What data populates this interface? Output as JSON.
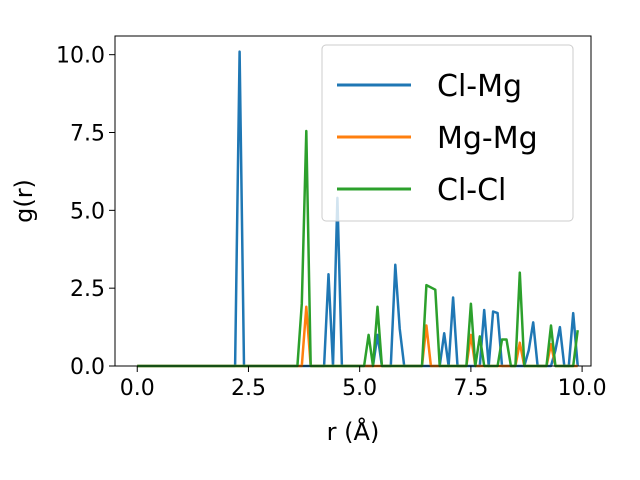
{
  "chart_data": {
    "type": "line",
    "xlabel": "r (Å)",
    "ylabel": "g(r)",
    "xlim": [
      -0.5,
      10.2
    ],
    "ylim": [
      0,
      10.6
    ],
    "xticks": [
      {
        "value": 0.0,
        "label": "0.0"
      },
      {
        "value": 2.5,
        "label": "2.5"
      },
      {
        "value": 5.0,
        "label": "5.0"
      },
      {
        "value": 7.5,
        "label": "7.5"
      },
      {
        "value": 10.0,
        "label": "10.0"
      }
    ],
    "yticks": [
      {
        "value": 0.0,
        "label": "0.0"
      },
      {
        "value": 2.5,
        "label": "2.5"
      },
      {
        "value": 5.0,
        "label": "5.0"
      },
      {
        "value": 7.5,
        "label": "7.5"
      },
      {
        "value": 10.0,
        "label": "10.0"
      }
    ],
    "grid": false,
    "legend_position": "top-right",
    "series": [
      {
        "name": "Cl-Mg",
        "color": "#1f77b4",
        "points": [
          [
            0.0,
            0
          ],
          [
            2.2,
            0
          ],
          [
            2.3,
            10.1
          ],
          [
            2.4,
            0
          ],
          [
            4.2,
            0
          ],
          [
            4.3,
            2.95
          ],
          [
            4.4,
            0
          ],
          [
            4.5,
            5.4
          ],
          [
            4.6,
            0
          ],
          [
            5.3,
            0
          ],
          [
            5.4,
            1.0
          ],
          [
            5.5,
            0
          ],
          [
            5.7,
            0
          ],
          [
            5.8,
            3.25
          ],
          [
            5.9,
            1.2
          ],
          [
            6.0,
            0
          ],
          [
            6.8,
            0
          ],
          [
            6.9,
            1.05
          ],
          [
            7.0,
            0
          ],
          [
            7.1,
            2.2
          ],
          [
            7.2,
            0
          ],
          [
            7.7,
            0
          ],
          [
            7.8,
            1.8
          ],
          [
            7.9,
            0
          ],
          [
            8.0,
            1.75
          ],
          [
            8.1,
            1.7
          ],
          [
            8.2,
            0
          ],
          [
            8.7,
            0
          ],
          [
            8.8,
            0.5
          ],
          [
            8.9,
            1.4
          ],
          [
            9.0,
            0
          ],
          [
            9.3,
            0
          ],
          [
            9.4,
            0.5
          ],
          [
            9.5,
            1.25
          ],
          [
            9.6,
            0
          ],
          [
            9.7,
            0
          ],
          [
            9.8,
            1.7
          ],
          [
            9.9,
            0
          ]
        ]
      },
      {
        "name": "Mg-Mg",
        "color": "#ff7f0e",
        "points": [
          [
            0.0,
            0
          ],
          [
            3.7,
            0
          ],
          [
            3.8,
            1.9
          ],
          [
            3.9,
            0
          ],
          [
            6.4,
            0
          ],
          [
            6.5,
            1.3
          ],
          [
            6.6,
            0
          ],
          [
            7.4,
            0
          ],
          [
            7.5,
            1.0
          ],
          [
            7.6,
            0
          ],
          [
            8.5,
            0
          ],
          [
            8.6,
            0.75
          ],
          [
            8.7,
            0
          ],
          [
            9.2,
            0
          ],
          [
            9.3,
            0.7
          ],
          [
            9.4,
            0
          ],
          [
            9.9,
            0
          ]
        ]
      },
      {
        "name": "Cl-Cl",
        "color": "#2ca02c",
        "points": [
          [
            0.0,
            0
          ],
          [
            3.6,
            0
          ],
          [
            3.7,
            2.0
          ],
          [
            3.8,
            7.55
          ],
          [
            3.9,
            0
          ],
          [
            5.1,
            0
          ],
          [
            5.2,
            1.0
          ],
          [
            5.3,
            0
          ],
          [
            5.4,
            1.9
          ],
          [
            5.5,
            0
          ],
          [
            6.4,
            0
          ],
          [
            6.5,
            2.6
          ],
          [
            6.7,
            2.45
          ],
          [
            6.8,
            0
          ],
          [
            7.4,
            0
          ],
          [
            7.5,
            2.0
          ],
          [
            7.6,
            0
          ],
          [
            7.7,
            0.95
          ],
          [
            7.8,
            0
          ],
          [
            8.1,
            0
          ],
          [
            8.2,
            0.85
          ],
          [
            8.3,
            0.85
          ],
          [
            8.4,
            0
          ],
          [
            8.5,
            0
          ],
          [
            8.6,
            3.0
          ],
          [
            8.7,
            0
          ],
          [
            9.2,
            0
          ],
          [
            9.3,
            1.3
          ],
          [
            9.4,
            0
          ],
          [
            9.8,
            0
          ],
          [
            9.9,
            1.15
          ]
        ]
      }
    ]
  }
}
